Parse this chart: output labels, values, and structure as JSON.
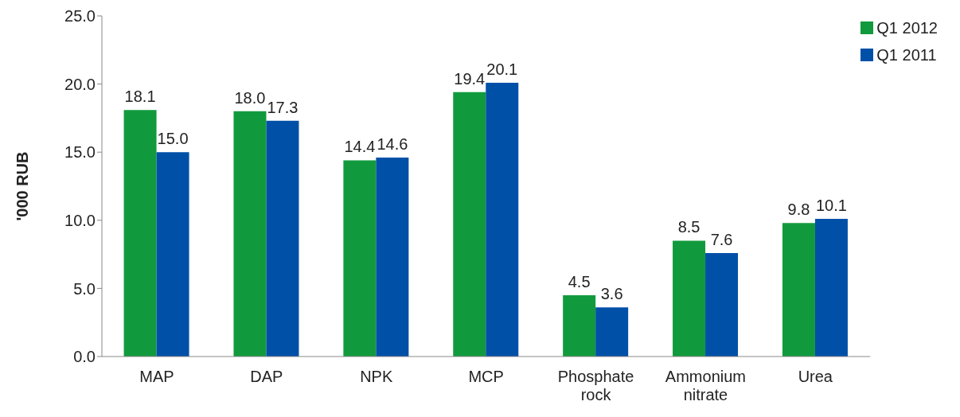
{
  "chart_data": {
    "type": "bar",
    "ylabel": "'000 RUB",
    "categories": [
      "MAP",
      "DAP",
      "NPK",
      "MCP",
      "Phosphate rock",
      "Ammonium nitrate",
      "Urea"
    ],
    "series": [
      {
        "name": "Q1 2012",
        "color": "#119a3d",
        "values": [
          18.1,
          18.0,
          14.4,
          19.4,
          4.5,
          8.5,
          9.8
        ],
        "value_labels": [
          "18.1",
          "18.0",
          "14.4",
          "19.4",
          "4.5",
          "8.5",
          "9.8"
        ]
      },
      {
        "name": "Q1 2011",
        "color": "#0050a8",
        "values": [
          15.0,
          17.3,
          14.6,
          20.1,
          3.6,
          7.6,
          10.1
        ],
        "value_labels": [
          "15.0",
          "17.3",
          "14.6",
          "20.1",
          "3.6",
          "7.6",
          "10.1"
        ]
      }
    ],
    "ylim": [
      0,
      25
    ],
    "yticks": [
      {
        "value": 0,
        "label": "0.0"
      },
      {
        "value": 5,
        "label": "5.0"
      },
      {
        "value": 10,
        "label": "10.0"
      },
      {
        "value": 15,
        "label": "15.0"
      },
      {
        "value": 20,
        "label": "20.0"
      },
      {
        "value": 25,
        "label": "25.0"
      }
    ],
    "grid": false,
    "legend": "top right"
  }
}
